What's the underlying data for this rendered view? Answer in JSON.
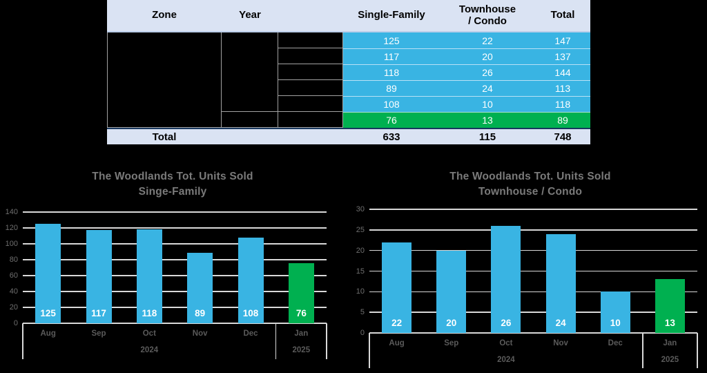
{
  "colors": {
    "row_blue": "#39b4e3",
    "row_green": "#00b050",
    "band_bg": "#dae3f3",
    "grid_line": "#d9d9d9",
    "background": "#000000"
  },
  "table": {
    "headers": [
      "Zone",
      "Year",
      "",
      "Single-Family",
      "Townhouse\n/ Condo",
      "Total"
    ],
    "rows": [
      {
        "single_family": "125",
        "townhouse_condo": "22",
        "total": "147"
      },
      {
        "single_family": "117",
        "townhouse_condo": "20",
        "total": "137"
      },
      {
        "single_family": "118",
        "townhouse_condo": "26",
        "total": "144"
      },
      {
        "single_family": "89",
        "townhouse_condo": "24",
        "total": "113"
      },
      {
        "single_family": "108",
        "townhouse_condo": "10",
        "total": "118"
      },
      {
        "single_family": "76",
        "townhouse_condo": "13",
        "total": "89"
      }
    ],
    "total_row": {
      "label": "Total",
      "single_family": "633",
      "townhouse_condo": "115",
      "total": "748"
    }
  },
  "chart_data": [
    {
      "type": "bar",
      "title": "The Woodlands Tot. Units Sold",
      "subtitle": "Singe-Family",
      "categories": [
        "Aug",
        "Sep",
        "Oct",
        "Nov",
        "Dec",
        "Jan"
      ],
      "values": [
        125,
        117,
        118,
        89,
        108,
        76
      ],
      "bar_colors": [
        "#39b4e3",
        "#39b4e3",
        "#39b4e3",
        "#39b4e3",
        "#39b4e3",
        "#00b050"
      ],
      "year_groups": [
        {
          "label": "2024",
          "span": 5
        },
        {
          "label": "2025",
          "span": 1
        }
      ],
      "ylim": [
        0,
        140
      ],
      "ytick": 20,
      "grid": true,
      "legend": "none",
      "value_labels": "inside-bottom"
    },
    {
      "type": "bar",
      "title": "The Woodlands Tot. Units Sold",
      "subtitle": "Townhouse / Condo",
      "categories": [
        "Aug",
        "Sep",
        "Oct",
        "Nov",
        "Dec",
        "Jan"
      ],
      "values": [
        22,
        20,
        26,
        24,
        10,
        13
      ],
      "bar_colors": [
        "#39b4e3",
        "#39b4e3",
        "#39b4e3",
        "#39b4e3",
        "#39b4e3",
        "#00b050"
      ],
      "year_groups": [
        {
          "label": "2024",
          "span": 5
        },
        {
          "label": "2025",
          "span": 1
        }
      ],
      "ylim": [
        0,
        30
      ],
      "ytick": 5,
      "grid": true,
      "legend": "none",
      "value_labels": "inside-bottom"
    }
  ]
}
